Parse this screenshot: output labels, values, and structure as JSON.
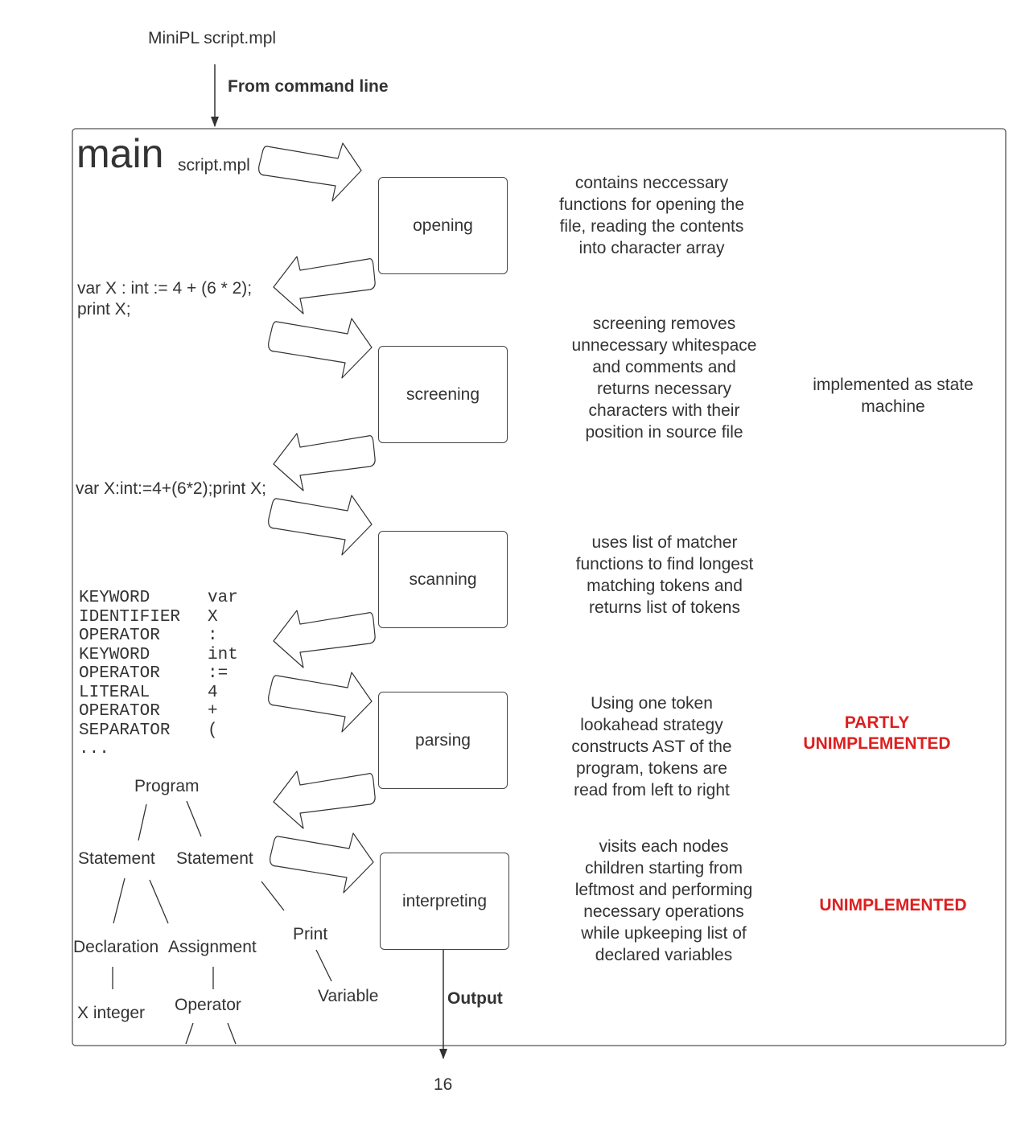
{
  "header": {
    "source": "MiniPL script.mpl",
    "input_label": "From command line"
  },
  "main": {
    "title": "main",
    "file": "script.mpl"
  },
  "stages": [
    {
      "label": "opening",
      "desc": "contains neccessary functions for opening the file, reading the contents into character array"
    },
    {
      "label": "screening",
      "desc": "screening removes unnecessary whitespace and comments and returns necessary characters with their position in source file"
    },
    {
      "label": "scanning",
      "desc": "uses list of  matcher functions to find longest matching tokens and returns list of tokens"
    },
    {
      "label": "parsing",
      "desc": "Using one token lookahead strategy constructs AST of the program, tokens are read from left to right"
    },
    {
      "label": "interpreting",
      "desc": "visits each nodes children starting from leftmost and performing necessary operations while upkeeping list of declared variables"
    }
  ],
  "notes": {
    "screening": "implemented as state machine",
    "parsing": "PARTLY UNIMPLEMENTED",
    "interpreting": "UNIMPLEMENTED"
  },
  "code": {
    "line1": "var X : int := 4 + (6 * 2);",
    "line2": "print X;",
    "screened": "var X:int:=4+(6*2);print X;"
  },
  "tokens": [
    {
      "type": "KEYWORD",
      "value": "var"
    },
    {
      "type": "IDENTIFIER",
      "value": "X"
    },
    {
      "type": "OPERATOR",
      "value": ":"
    },
    {
      "type": "KEYWORD",
      "value": "int"
    },
    {
      "type": "OPERATOR",
      "value": ":="
    },
    {
      "type": "LITERAL",
      "value": "4"
    },
    {
      "type": "OPERATOR",
      "value": "+"
    },
    {
      "type": "SEPARATOR",
      "value": "("
    }
  ],
  "tokens_more": "...",
  "ast": {
    "program": "Program",
    "statement1": "Statement",
    "statement2": "Statement",
    "declaration": "Declaration",
    "assignment": "Assignment",
    "print": "Print",
    "x_integer": "X integer",
    "operator": "Operator",
    "variable": "Variable"
  },
  "output": {
    "label": "Output",
    "value": "16"
  },
  "colors": {
    "line": "#333333",
    "warning": "#dd1f1f"
  }
}
